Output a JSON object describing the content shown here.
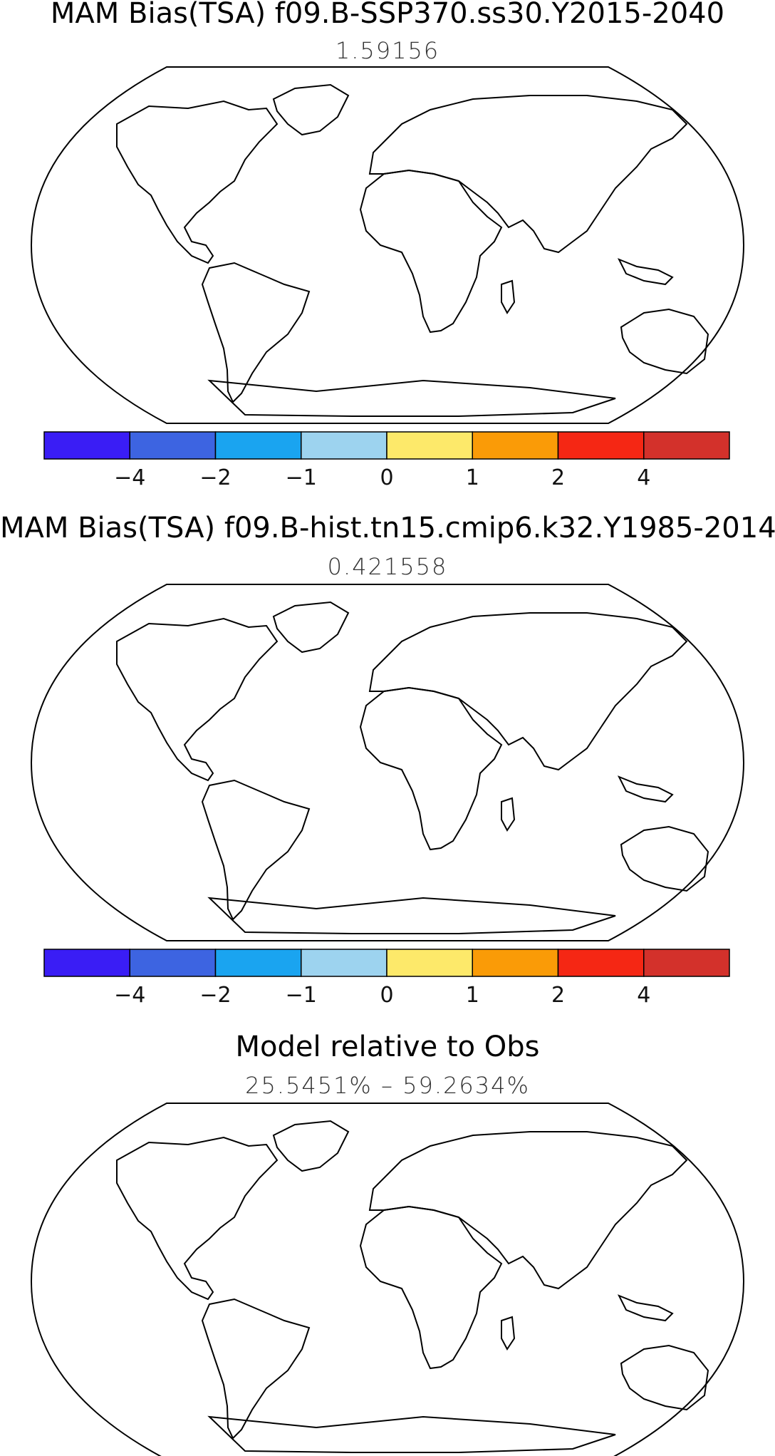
{
  "panels": [
    {
      "title": "MAM Bias(TSA) f09.B-SSP370.ss30.Y2015-2040",
      "value_label": "1.59156"
    },
    {
      "title": "MAM Bias(TSA) f09.B-hist.tn15.cmip6.k32.Y1985-2014",
      "value_label": "0.421558"
    },
    {
      "title": "Model relative to Obs",
      "value_label": "25.5451% – 59.2634%"
    }
  ],
  "colorbar": {
    "colors": [
      "#3a1df5",
      "#3d64e1",
      "#1aa4f0",
      "#9dd3ef",
      "#fde96a",
      "#fa9b07",
      "#f52714",
      "#d3312b"
    ],
    "tick_labels": [
      "−4",
      "−2",
      "−1",
      "0",
      "1",
      "2",
      "4"
    ]
  },
  "relative_colors": {
    "red": "#f20c0c",
    "green": "#19f21a"
  }
}
